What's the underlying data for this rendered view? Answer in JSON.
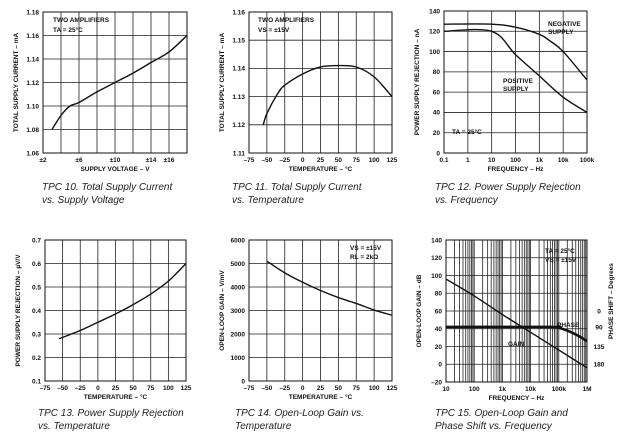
{
  "chart_data": [
    {
      "type": "line",
      "title": "TPC 10. Total Supply Current",
      "subtitle": "vs. Supply Voltage",
      "xlabel": "SUPPLY VOLTAGE – V",
      "ylabel": "TOTAL SUPPLY CURRENT – mA",
      "xscale": "linear",
      "xlim": [
        2,
        18
      ],
      "ylim": [
        1.06,
        1.18
      ],
      "xgrid": [
        2,
        4,
        6,
        8,
        10,
        12,
        14,
        16,
        18
      ],
      "ygrid": [
        1.06,
        1.08,
        1.1,
        1.12,
        1.14,
        1.16,
        1.18
      ],
      "xticks": [
        {
          "v": 2,
          "t": "±2"
        },
        {
          "v": 6,
          "t": "±6"
        },
        {
          "v": 10,
          "t": "±10"
        },
        {
          "v": 14,
          "t": "±14"
        },
        {
          "v": 16,
          "t": "±16"
        }
      ],
      "yticks": [
        {
          "v": 1.06,
          "t": "1.06"
        },
        {
          "v": 1.08,
          "t": "1.08"
        },
        {
          "v": 1.1,
          "t": "1.10"
        },
        {
          "v": 1.12,
          "t": "1.12"
        },
        {
          "v": 1.14,
          "t": "1.14"
        },
        {
          "v": 1.16,
          "t": "1.16"
        },
        {
          "v": 1.18,
          "t": "1.18"
        }
      ],
      "annotations": [
        "TWO AMPLIFIERS",
        "TA = 25°C"
      ],
      "series": [
        {
          "name": "Supply current",
          "x": [
            3,
            4,
            5,
            6,
            8,
            10,
            12,
            14,
            16,
            18
          ],
          "y": [
            1.08,
            1.092,
            1.1,
            1.103,
            1.112,
            1.12,
            1.128,
            1.137,
            1.146,
            1.16
          ]
        }
      ]
    },
    {
      "type": "line",
      "title": "TPC 11. Total Supply Current",
      "subtitle": "vs. Temperature",
      "xlabel": "TEMPERATURE – °C",
      "ylabel": "TOTAL SUPPLY CURRENT – mA",
      "xscale": "linear",
      "xlim": [
        -75,
        125
      ],
      "ylim": [
        1.11,
        1.16
      ],
      "xgrid": [
        -75,
        -50,
        -25,
        0,
        25,
        50,
        75,
        100,
        125
      ],
      "ygrid": [
        1.11,
        1.12,
        1.13,
        1.14,
        1.15,
        1.16
      ],
      "xticks": [
        {
          "v": -75,
          "t": "–75"
        },
        {
          "v": -50,
          "t": "–50"
        },
        {
          "v": -25,
          "t": "–25"
        },
        {
          "v": 0,
          "t": "0"
        },
        {
          "v": 25,
          "t": "25"
        },
        {
          "v": 50,
          "t": "50"
        },
        {
          "v": 75,
          "t": "75"
        },
        {
          "v": 100,
          "t": "100"
        },
        {
          "v": 125,
          "t": "125"
        }
      ],
      "yticks": [
        {
          "v": 1.11,
          "t": "1.11"
        },
        {
          "v": 1.12,
          "t": "1.12"
        },
        {
          "v": 1.13,
          "t": "1.13"
        },
        {
          "v": 1.14,
          "t": "1.14"
        },
        {
          "v": 1.15,
          "t": "1.15"
        },
        {
          "v": 1.16,
          "t": "1.16"
        }
      ],
      "annotations": [
        "TWO AMPLIFIERS",
        "VS = ±15V"
      ],
      "series": [
        {
          "name": "Supply current",
          "x": [
            -55,
            -50,
            -35,
            -25,
            0,
            25,
            50,
            75,
            100,
            125
          ],
          "y": [
            1.12,
            1.124,
            1.131,
            1.134,
            1.138,
            1.1405,
            1.141,
            1.1405,
            1.137,
            1.13
          ]
        }
      ]
    },
    {
      "type": "line",
      "title": "TPC 12. Power Supply Rejection",
      "subtitle": "vs. Frequency",
      "xlabel": "FREQUENCY – Hz",
      "ylabel": "POWER SUPPLY REJECTION – nA",
      "xscale": "log",
      "xlim": [
        0.1,
        100000
      ],
      "ylim": [
        0,
        140
      ],
      "xgrid": [
        0.1,
        1,
        10,
        100,
        1000,
        10000,
        100000
      ],
      "ygrid": [
        0,
        20,
        40,
        60,
        80,
        100,
        120,
        140
      ],
      "xticks": [
        {
          "v": 0.1,
          "t": "0.1"
        },
        {
          "v": 1,
          "t": "1"
        },
        {
          "v": 10,
          "t": "10"
        },
        {
          "v": 100,
          "t": "100"
        },
        {
          "v": 1000,
          "t": "1k"
        },
        {
          "v": 10000,
          "t": "10k"
        },
        {
          "v": 100000,
          "t": "100k"
        }
      ],
      "yticks": [
        {
          "v": 0,
          "t": "0"
        },
        {
          "v": 20,
          "t": "20"
        },
        {
          "v": 40,
          "t": "40"
        },
        {
          "v": 60,
          "t": "60"
        },
        {
          "v": 80,
          "t": "80"
        },
        {
          "v": 100,
          "t": "100"
        },
        {
          "v": 120,
          "t": "120"
        },
        {
          "v": 140,
          "t": "140"
        }
      ],
      "annotations": [
        "NEGATIVE",
        "SUPPLY",
        "POSITIVE",
        "SUPPLY",
        "TA = 25°C"
      ],
      "series": [
        {
          "name": "NEGATIVE SUPPLY",
          "x": [
            0.1,
            10,
            100,
            1000,
            3000,
            10000,
            100000
          ],
          "y": [
            127,
            127,
            124,
            117,
            110,
            100,
            72
          ]
        },
        {
          "name": "POSITIVE SUPPLY",
          "x": [
            0.1,
            10,
            100,
            1000,
            10000,
            100000
          ],
          "y": [
            120,
            120,
            97,
            76,
            55,
            40
          ]
        }
      ]
    },
    {
      "type": "line",
      "title": "TPC 13. Power Supply Rejection",
      "subtitle": "vs. Temperature",
      "xlabel": "TEMPERATURE – °C",
      "ylabel": "POWER SUPPLY REJECTION – µV/V",
      "xscale": "linear",
      "xlim": [
        -75,
        125
      ],
      "ylim": [
        0.1,
        0.7
      ],
      "xgrid": [
        -75,
        -50,
        -25,
        0,
        25,
        50,
        75,
        100,
        125
      ],
      "ygrid": [
        0.1,
        0.2,
        0.3,
        0.4,
        0.5,
        0.6,
        0.7
      ],
      "xticks": [
        {
          "v": -75,
          "t": "–75"
        },
        {
          "v": -50,
          "t": "–50"
        },
        {
          "v": -25,
          "t": "–25"
        },
        {
          "v": 0,
          "t": "0"
        },
        {
          "v": 25,
          "t": "25"
        },
        {
          "v": 50,
          "t": "50"
        },
        {
          "v": 75,
          "t": "75"
        },
        {
          "v": 100,
          "t": "100"
        },
        {
          "v": 125,
          "t": "125"
        }
      ],
      "yticks": [
        {
          "v": 0.1,
          "t": "0.1"
        },
        {
          "v": 0.2,
          "t": "0.2"
        },
        {
          "v": 0.3,
          "t": "0.3"
        },
        {
          "v": 0.4,
          "t": "0.4"
        },
        {
          "v": 0.5,
          "t": "0.5"
        },
        {
          "v": 0.6,
          "t": "0.6"
        },
        {
          "v": 0.7,
          "t": "0.7"
        }
      ],
      "annotations": [],
      "series": [
        {
          "name": "PSR",
          "x": [
            -55,
            -25,
            0,
            25,
            50,
            75,
            100,
            125
          ],
          "y": [
            0.28,
            0.315,
            0.35,
            0.385,
            0.425,
            0.47,
            0.525,
            0.6
          ]
        }
      ]
    },
    {
      "type": "line",
      "title": "TPC 14. Open-Loop Gain vs.",
      "subtitle": "Temperature",
      "xlabel": "TEMPERATURE – °C",
      "ylabel": "OPEN-LOOP GAIN – V/mV",
      "xscale": "linear",
      "xlim": [
        -75,
        125
      ],
      "ylim": [
        0,
        6000
      ],
      "xgrid": [
        -75,
        -50,
        -25,
        0,
        25,
        50,
        75,
        100,
        125
      ],
      "ygrid": [
        0,
        1000,
        2000,
        3000,
        4000,
        5000,
        6000
      ],
      "xticks": [
        {
          "v": -75,
          "t": "–75"
        },
        {
          "v": -50,
          "t": "–50"
        },
        {
          "v": -25,
          "t": "–25"
        },
        {
          "v": 0,
          "t": "0"
        },
        {
          "v": 25,
          "t": "25"
        },
        {
          "v": 50,
          "t": "50"
        },
        {
          "v": 75,
          "t": "75"
        },
        {
          "v": 100,
          "t": "100"
        },
        {
          "v": 125,
          "t": "125"
        }
      ],
      "yticks": [
        {
          "v": 0,
          "t": "0"
        },
        {
          "v": 1000,
          "t": "1000"
        },
        {
          "v": 2000,
          "t": "2000"
        },
        {
          "v": 3000,
          "t": "3000"
        },
        {
          "v": 4000,
          "t": "4000"
        },
        {
          "v": 5000,
          "t": "5000"
        },
        {
          "v": 6000,
          "t": "6000"
        }
      ],
      "annotations": [
        "VS = ±15V",
        "RL = 2kΩ"
      ],
      "series": [
        {
          "name": "Open-loop gain",
          "x": [
            -50,
            -25,
            0,
            25,
            50,
            75,
            100,
            125
          ],
          "y": [
            5100,
            4600,
            4200,
            3850,
            3550,
            3300,
            3020,
            2800
          ]
        }
      ]
    },
    {
      "type": "line",
      "title": "TPC 15. Open-Loop Gain and",
      "subtitle": "Phase Shift vs. Frequency",
      "xlabel": "FREQUENCY – Hz",
      "ylabel": "OPEN-LOOP GAIN – dB",
      "y2label": "PHASE SHIFT – Degrees",
      "xscale": "log",
      "xlim": [
        10,
        1000000
      ],
      "ylim": [
        -20,
        140
      ],
      "xgrid": "log-minor",
      "ygrid": [
        -20,
        0,
        20,
        40,
        60,
        80,
        100,
        120,
        140
      ],
      "xticks": [
        {
          "v": 10,
          "t": "10"
        },
        {
          "v": 100,
          "t": "100"
        },
        {
          "v": 1000,
          "t": "1k"
        },
        {
          "v": 10000,
          "t": "10k"
        },
        {
          "v": 100000,
          "t": "100k"
        },
        {
          "v": 1000000,
          "t": "1M"
        }
      ],
      "yticks": [
        {
          "v": -20,
          "t": "–20"
        },
        {
          "v": 0,
          "t": "0"
        },
        {
          "v": 20,
          "t": "20"
        },
        {
          "v": 40,
          "t": "40"
        },
        {
          "v": 60,
          "t": "60"
        },
        {
          "v": 80,
          "t": "80"
        },
        {
          "v": 100,
          "t": "100"
        },
        {
          "v": 120,
          "t": "120"
        },
        {
          "v": 140,
          "t": "140"
        }
      ],
      "y2ticks": [
        {
          "v": 60,
          "t": "0"
        },
        {
          "v": 42,
          "t": "90"
        },
        {
          "v": 20,
          "t": "135"
        },
        {
          "v": 0,
          "t": "180"
        }
      ],
      "annotations": [
        "TA = 25°C",
        "VS = ±15V",
        "PHASE",
        "GAIN"
      ],
      "series": [
        {
          "name": "GAIN",
          "x": [
            10,
            100,
            1000,
            10000,
            100000,
            1000000
          ],
          "y": [
            96,
            77,
            56,
            36,
            16,
            -4
          ]
        },
        {
          "name": "PHASE",
          "x": [
            10,
            50000,
            100000,
            200000,
            500000,
            1000000
          ],
          "y": [
            42,
            42,
            41,
            38,
            32,
            26
          ]
        }
      ]
    }
  ]
}
